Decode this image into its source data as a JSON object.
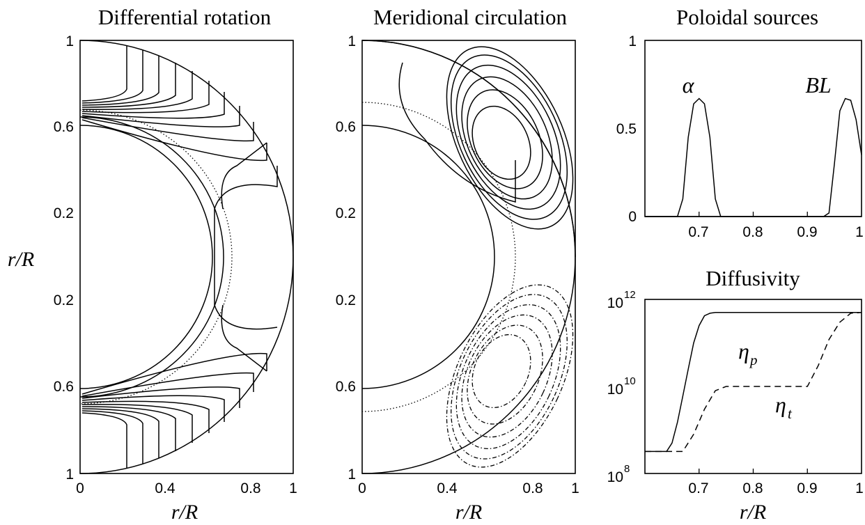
{
  "chart_data": [
    {
      "type": "contour",
      "title": "Differential rotation",
      "xlabel": "r/R",
      "ylabel": "r/R",
      "xticks": [
        "0",
        "0.4",
        "0.8",
        "1"
      ],
      "yticks": [
        "1",
        "0.6",
        "0.2",
        "0.2",
        "0.6",
        "1"
      ]
    },
    {
      "type": "contour",
      "title": "Meridional circulation",
      "xlabel": "r/R",
      "xticks": [
        "0",
        "0.4",
        "0.8",
        "1"
      ],
      "yticks": [
        "1",
        "0.6",
        "0.2",
        "0.2",
        "0.6",
        "1"
      ]
    },
    {
      "type": "line",
      "title": "Poloidal sources",
      "xticks": [
        "0.7",
        "0.8",
        "0.9",
        "1"
      ],
      "yticks": [
        "0",
        "0.5",
        "1"
      ],
      "xlim": [
        0.6,
        1.0
      ],
      "ylim": [
        0,
        1
      ],
      "series": [
        {
          "name": "α",
          "x": [
            0.6,
            0.66,
            0.67,
            0.68,
            0.69,
            0.7,
            0.71,
            0.72,
            0.73,
            0.74,
            1.0
          ],
          "y": [
            0,
            0,
            0.1,
            0.45,
            0.64,
            0.67,
            0.64,
            0.45,
            0.1,
            0,
            0
          ]
        },
        {
          "name": "BL",
          "x": [
            0.6,
            0.93,
            0.94,
            0.95,
            0.96,
            0.97,
            0.98,
            0.99,
            1.0
          ],
          "y": [
            0,
            0,
            0.02,
            0.3,
            0.6,
            0.67,
            0.66,
            0.55,
            0.35
          ]
        }
      ]
    },
    {
      "type": "line",
      "title": "Diffusivity",
      "xlabel": "r/R",
      "yscale": "log",
      "xticks": [
        "0.7",
        "0.8",
        "0.9",
        "1"
      ],
      "yticks": [
        {
          "base": "10",
          "exp": "8"
        },
        {
          "base": "10",
          "exp": "10"
        },
        {
          "base": "10",
          "exp": "12"
        }
      ],
      "xlim": [
        0.6,
        1.0
      ],
      "ylim": [
        100000000.0,
        1000000000000.0
      ],
      "series": [
        {
          "name": "η",
          "subscript": "p",
          "x": [
            0.6,
            0.64,
            0.65,
            0.66,
            0.67,
            0.68,
            0.69,
            0.7,
            0.71,
            0.72,
            0.73,
            1.0
          ],
          "y": [
            320000000.0,
            320000000.0,
            500000000.0,
            1500000000.0,
            6000000000.0,
            25000000000.0,
            100000000000.0,
            250000000000.0,
            420000000000.0,
            480000000000.0,
            500000000000.0,
            500000000000.0
          ]
        },
        {
          "name": "η",
          "subscript": "t",
          "x": [
            0.6,
            0.67,
            0.69,
            0.71,
            0.73,
            0.75,
            0.9,
            0.92,
            0.94,
            0.96,
            0.98,
            1.0
          ],
          "y": [
            320000000.0,
            320000000.0,
            800000000.0,
            3000000000.0,
            8000000000.0,
            10000000000.0,
            10000000000.0,
            30000000000.0,
            120000000000.0,
            300000000000.0,
            480000000000.0,
            500000000000.0
          ]
        }
      ]
    }
  ]
}
